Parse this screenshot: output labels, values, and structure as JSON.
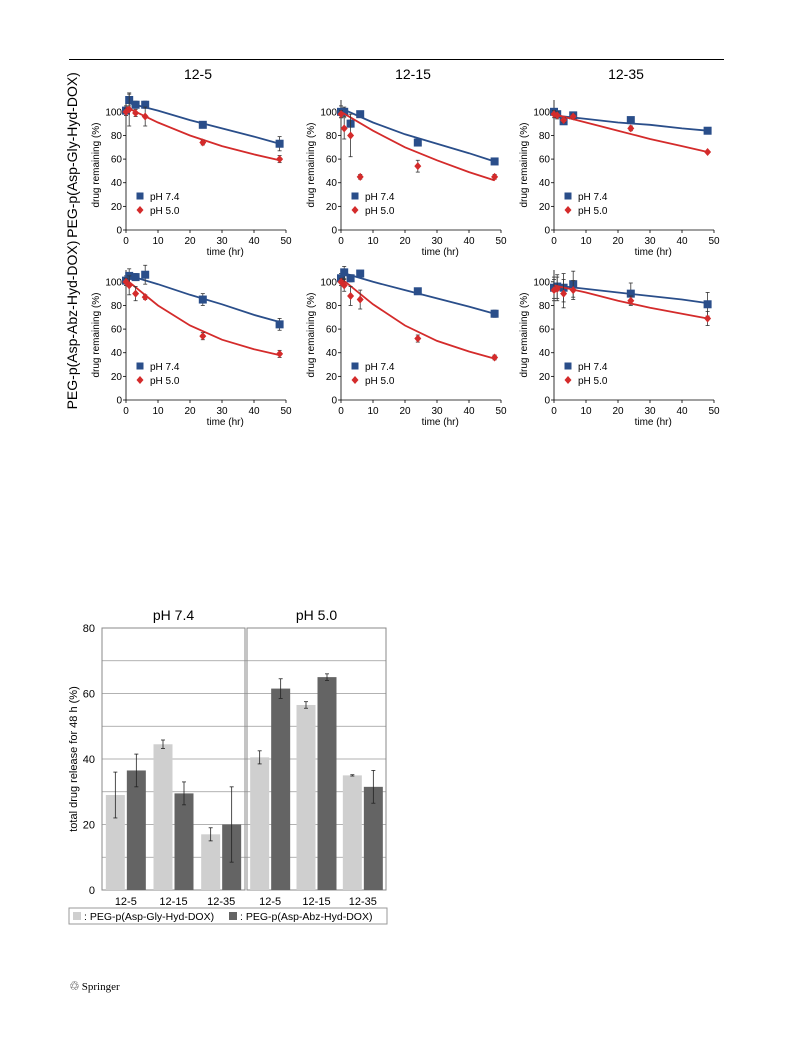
{
  "header": {},
  "footer": {
    "publisher_logo_glyph": "♲",
    "publisher": "Springer"
  },
  "colors": {
    "ph74": "#2a4e8a",
    "ph50": "#d42b2b",
    "gly": "#cfcfcf",
    "abz": "#646464"
  },
  "chart_data": [
    {
      "type": "scatter",
      "title": "12-5",
      "row_label": "PEG-p(Asp-Gly-Hyd-DOX)",
      "xlabel": "time (hr)",
      "ylabel": "drug remaining (%)",
      "xlim": [
        0,
        50
      ],
      "ylim": [
        0,
        110
      ],
      "xticks": [
        "0",
        "10",
        "20",
        "30",
        "40",
        "50"
      ],
      "yticks": [
        "0",
        "20",
        "40",
        "60",
        "80",
        "100"
      ],
      "legend": [
        "pH 7.4",
        "pH 5.0"
      ],
      "series": [
        {
          "name": "pH 7.4",
          "marker": "square",
          "x": [
            0,
            1,
            3,
            6,
            24,
            48
          ],
          "y": [
            101,
            110,
            106,
            106,
            89,
            73
          ],
          "err": [
            4,
            5,
            3,
            3,
            2,
            6
          ],
          "fit": [
            [
              0,
              108
            ],
            [
              10,
              101
            ],
            [
              20,
              93
            ],
            [
              30,
              86
            ],
            [
              40,
              79
            ],
            [
              48,
              73
            ]
          ]
        },
        {
          "name": "pH 5.0",
          "marker": "diamond",
          "x": [
            0,
            1,
            3,
            6,
            24,
            48
          ],
          "y": [
            100,
            102,
            99,
            96,
            74,
            60
          ],
          "err": [
            3,
            14,
            3,
            8,
            2,
            3
          ],
          "fit": [
            [
              0,
              104
            ],
            [
              10,
              91
            ],
            [
              20,
              80
            ],
            [
              30,
              71
            ],
            [
              40,
              64
            ],
            [
              48,
              59
            ]
          ]
        }
      ]
    },
    {
      "type": "scatter",
      "title": "12-15",
      "xlabel": "time (hr)",
      "ylabel": "drug remaining (%)",
      "xlim": [
        0,
        50
      ],
      "ylim": [
        0,
        110
      ],
      "xticks": [
        "0",
        "10",
        "20",
        "30",
        "40",
        "50"
      ],
      "yticks": [
        "0",
        "20",
        "40",
        "60",
        "80",
        "100"
      ],
      "legend": [
        "pH 7.4",
        "pH 5.0"
      ],
      "series": [
        {
          "name": "pH 7.4",
          "marker": "square",
          "x": [
            0,
            1,
            3,
            6,
            24,
            48
          ],
          "y": [
            100,
            100,
            90,
            98,
            74,
            58
          ],
          "err": [
            5,
            4,
            3,
            2,
            2,
            2
          ],
          "fit": [
            [
              0,
              103
            ],
            [
              10,
              91
            ],
            [
              20,
              81
            ],
            [
              30,
              73
            ],
            [
              40,
              65
            ],
            [
              48,
              58
            ]
          ]
        },
        {
          "name": "pH 5.0",
          "marker": "diamond",
          "x": [
            0,
            1,
            3,
            6,
            24,
            48
          ],
          "y": [
            98,
            86,
            80,
            45,
            54,
            45
          ],
          "err": [
            3,
            9,
            18,
            2,
            5,
            2
          ],
          "fit": [
            [
              0,
              100
            ],
            [
              10,
              84
            ],
            [
              20,
              70
            ],
            [
              30,
              59
            ],
            [
              40,
              49
            ],
            [
              48,
              42
            ]
          ]
        }
      ]
    },
    {
      "type": "scatter",
      "title": "12-35",
      "xlabel": "time (hr)",
      "ylabel": "drug remaining (%)",
      "xlim": [
        0,
        50
      ],
      "ylim": [
        0,
        110
      ],
      "xticks": [
        "0",
        "10",
        "20",
        "30",
        "40",
        "50"
      ],
      "yticks": [
        "0",
        "20",
        "40",
        "60",
        "80",
        "100"
      ],
      "legend": [
        "pH 7.4",
        "pH 5.0"
      ],
      "series": [
        {
          "name": "pH 7.4",
          "marker": "square",
          "x": [
            0,
            1,
            3,
            6,
            24,
            48
          ],
          "y": [
            100,
            98,
            92,
            97,
            93,
            84
          ],
          "err": [
            2,
            2,
            2,
            2,
            2,
            1
          ],
          "fit": [
            [
              0,
              97
            ],
            [
              10,
              94
            ],
            [
              20,
              91
            ],
            [
              30,
              89
            ],
            [
              40,
              86
            ],
            [
              48,
              84
            ]
          ]
        },
        {
          "name": "pH 5.0",
          "marker": "diamond",
          "x": [
            0,
            1,
            3,
            6,
            24,
            48
          ],
          "y": [
            98,
            97,
            93,
            96,
            86,
            66
          ],
          "err": [
            3,
            3,
            2,
            2,
            2,
            1
          ],
          "fit": [
            [
              0,
              98
            ],
            [
              10,
              91
            ],
            [
              20,
              84
            ],
            [
              30,
              77
            ],
            [
              40,
              71
            ],
            [
              48,
              66
            ]
          ]
        }
      ]
    },
    {
      "type": "scatter",
      "title": "",
      "row_label": "PEG-p(Asp-Abz-Hyd-DOX)",
      "xlabel": "time (hr)",
      "ylabel": "drug remaining (%)",
      "xlim": [
        0,
        50
      ],
      "ylim": [
        0,
        110
      ],
      "xticks": [
        "0",
        "10",
        "20",
        "30",
        "40",
        "50"
      ],
      "yticks": [
        "0",
        "20",
        "40",
        "60",
        "80",
        "100"
      ],
      "legend": [
        "pH 7.4",
        "pH 5.0"
      ],
      "series": [
        {
          "name": "pH 7.4",
          "marker": "square",
          "x": [
            0,
            1,
            3,
            6,
            24,
            48
          ],
          "y": [
            101,
            105,
            104,
            106,
            85,
            64
          ],
          "err": [
            4,
            6,
            3,
            8,
            5,
            5
          ],
          "fit": [
            [
              0,
              106
            ],
            [
              10,
              98
            ],
            [
              20,
              89
            ],
            [
              30,
              81
            ],
            [
              40,
              72
            ],
            [
              48,
              66
            ]
          ]
        },
        {
          "name": "pH 5.0",
          "marker": "diamond",
          "x": [
            0,
            1,
            3,
            6,
            24,
            48
          ],
          "y": [
            100,
            97,
            90,
            87,
            54,
            39
          ],
          "err": [
            3,
            8,
            6,
            2,
            3,
            3
          ],
          "fit": [
            [
              0,
              102
            ],
            [
              10,
              80
            ],
            [
              20,
              63
            ],
            [
              30,
              51
            ],
            [
              40,
              43
            ],
            [
              48,
              38
            ]
          ]
        }
      ]
    },
    {
      "type": "scatter",
      "title": "",
      "xlabel": "time (hr)",
      "ylabel": "drug remaining (%)",
      "xlim": [
        0,
        50
      ],
      "ylim": [
        0,
        110
      ],
      "xticks": [
        "0",
        "10",
        "20",
        "30",
        "40",
        "50"
      ],
      "yticks": [
        "0",
        "20",
        "40",
        "60",
        "80",
        "100"
      ],
      "legend": [
        "pH 7.4",
        "pH 5.0"
      ],
      "series": [
        {
          "name": "pH 7.4",
          "marker": "square",
          "x": [
            0,
            1,
            3,
            6,
            24,
            48
          ],
          "y": [
            103,
            108,
            103,
            107,
            92,
            73
          ],
          "err": [
            4,
            5,
            3,
            2,
            2,
            3
          ],
          "fit": [
            [
              0,
              108
            ],
            [
              10,
              100
            ],
            [
              20,
              93
            ],
            [
              30,
              86
            ],
            [
              40,
              79
            ],
            [
              48,
              73
            ]
          ]
        },
        {
          "name": "pH 5.0",
          "marker": "diamond",
          "x": [
            0,
            1,
            3,
            6,
            24,
            48
          ],
          "y": [
            100,
            97,
            88,
            85,
            52,
            36
          ],
          "err": [
            3,
            5,
            8,
            8,
            3,
            2
          ],
          "fit": [
            [
              0,
              103
            ],
            [
              10,
              81
            ],
            [
              20,
              63
            ],
            [
              30,
              50
            ],
            [
              40,
              41
            ],
            [
              48,
              35
            ]
          ]
        }
      ]
    },
    {
      "type": "scatter",
      "title": "",
      "xlabel": "time (hr)",
      "ylabel": "drug remaining (%)",
      "xlim": [
        0,
        50
      ],
      "ylim": [
        0,
        110
      ],
      "xticks": [
        "0",
        "10",
        "20",
        "30",
        "40",
        "50"
      ],
      "yticks": [
        "0",
        "20",
        "40",
        "60",
        "80",
        "100"
      ],
      "legend": [
        "pH 7.4",
        "pH 5.0"
      ],
      "series": [
        {
          "name": "pH 7.4",
          "marker": "square",
          "x": [
            0,
            1,
            3,
            6,
            24,
            48
          ],
          "y": [
            95,
            96,
            95,
            98,
            90,
            81
          ],
          "err": [
            9,
            10,
            12,
            11,
            9,
            10
          ],
          "fit": [
            [
              0,
              97
            ],
            [
              10,
              94
            ],
            [
              20,
              91
            ],
            [
              30,
              88
            ],
            [
              40,
              85
            ],
            [
              48,
              82
            ]
          ]
        },
        {
          "name": "pH 5.0",
          "marker": "diamond",
          "x": [
            0,
            1,
            3,
            6,
            24,
            48
          ],
          "y": [
            93,
            94,
            90,
            93,
            84,
            69
          ],
          "err": [
            9,
            10,
            12,
            8,
            4,
            6
          ],
          "fit": [
            [
              0,
              97
            ],
            [
              10,
              91
            ],
            [
              20,
              84
            ],
            [
              30,
              78
            ],
            [
              40,
              73
            ],
            [
              48,
              69
            ]
          ]
        }
      ]
    },
    {
      "type": "bar",
      "ylabel": "total drug release for 48 h (%)",
      "ylim": [
        0,
        80
      ],
      "yticks": [
        "0",
        "20",
        "40",
        "60",
        "80"
      ],
      "grid": true,
      "panels": [
        {
          "title": "pH 7.4",
          "categories": [
            "12-5",
            "12-15",
            "12-35"
          ],
          "series": [
            {
              "name": ": PEG-p(Asp-Gly-Hyd-DOX)",
              "values": [
                29,
                44.5,
                17
              ],
              "err": [
                7,
                1.3,
                2
              ]
            },
            {
              "name": ": PEG-p(Asp-Abz-Hyd-DOX)",
              "values": [
                36.5,
                29.5,
                20
              ],
              "err": [
                5,
                3.5,
                11.5
              ]
            }
          ]
        },
        {
          "title": "pH 5.0",
          "categories": [
            "12-5",
            "12-15",
            "12-35"
          ],
          "series": [
            {
              "name": ": PEG-p(Asp-Gly-Hyd-DOX)",
              "values": [
                40.5,
                56.5,
                35
              ],
              "err": [
                2,
                1,
                0.2
              ]
            },
            {
              "name": ": PEG-p(Asp-Abz-Hyd-DOX)",
              "values": [
                61.5,
                65,
                31.5
              ],
              "err": [
                3,
                1,
                5
              ]
            }
          ]
        }
      ],
      "legend": [
        ": PEG-p(Asp-Gly-Hyd-DOX)",
        ": PEG-p(Asp-Abz-Hyd-DOX)"
      ]
    }
  ]
}
